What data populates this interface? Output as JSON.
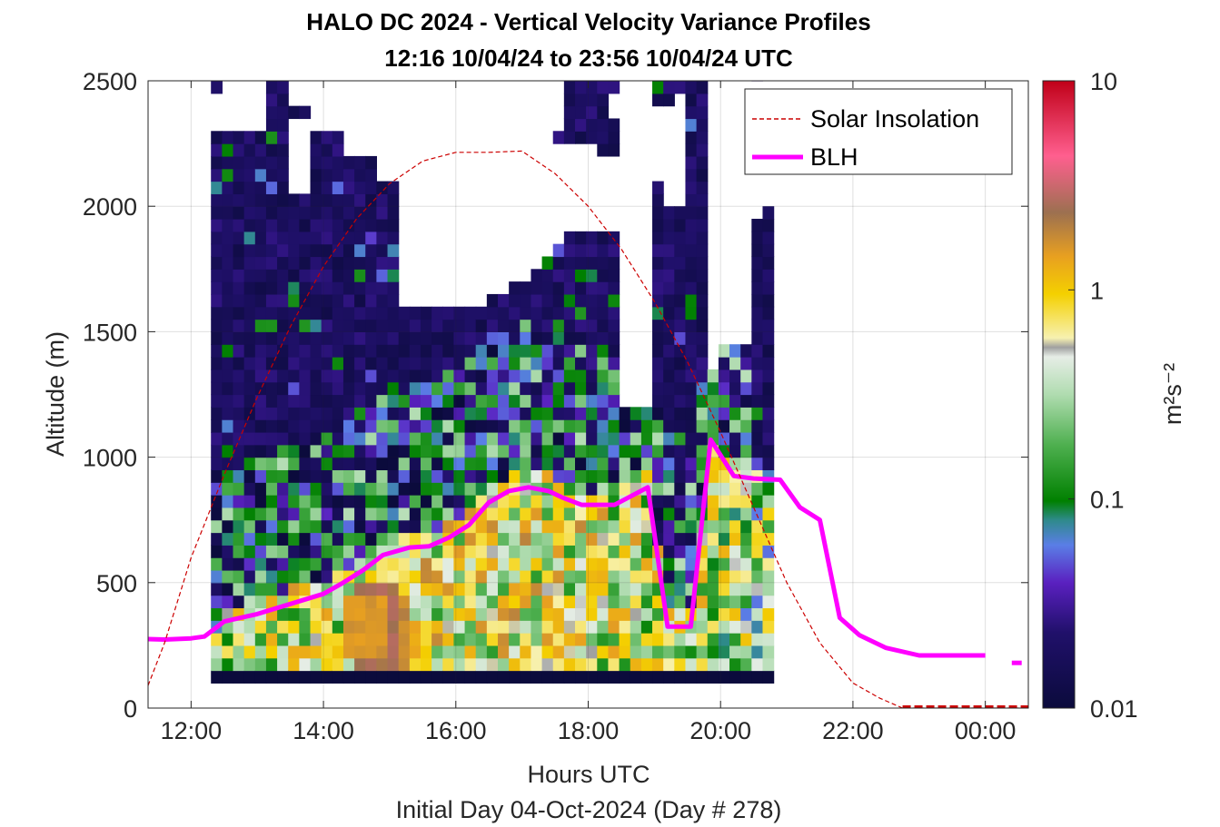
{
  "chart_data": {
    "type": "heatmap",
    "title": "HALO DC 2024 - Vertical Velocity Variance Profiles",
    "subtitle": "12:16 10/04/24 to 23:56 10/04/24  UTC",
    "xlabel": "Hours UTC",
    "xlabel2": "Initial Day 04-Oct-2024 (Day # 278)",
    "ylabel": "Altitude (m)",
    "xlim": [
      11.35,
      24.65
    ],
    "ylim": [
      0,
      2500
    ],
    "x_ticks": [
      12,
      14,
      16,
      18,
      20,
      22,
      24
    ],
    "x_tick_labels": [
      "12:00",
      "14:00",
      "16:00",
      "18:00",
      "20:00",
      "22:00",
      "00:00"
    ],
    "y_ticks": [
      0,
      500,
      1000,
      1500,
      2000,
      2500
    ],
    "y_tick_labels": [
      "0",
      "500",
      "1000",
      "1500",
      "2000",
      "2500"
    ],
    "grid": true,
    "colorbar": {
      "label": "m²s⁻²",
      "scale": "log",
      "range": [
        0.01,
        10
      ],
      "ticks": [
        "0.01",
        "0.1",
        "1",
        "10"
      ]
    },
    "legend": {
      "placement": "top-right",
      "entries": [
        "Solar Insolation",
        "BLH"
      ]
    },
    "series": [
      {
        "name": "BLH",
        "color": "#ff00ff",
        "x": [
          11.35,
          11.6,
          12.0,
          12.2,
          12.5,
          13.0,
          13.5,
          14.0,
          14.3,
          14.6,
          14.9,
          15.3,
          15.6,
          15.9,
          16.2,
          16.5,
          16.8,
          17.1,
          17.4,
          17.6,
          17.9,
          18.1,
          18.4,
          18.9,
          19.2,
          19.55,
          19.85,
          20.2,
          20.5,
          20.9,
          21.2,
          21.5,
          21.8,
          22.1,
          22.5,
          23.0,
          23.5,
          24.0
        ],
        "y": [
          275,
          273,
          278,
          285,
          345,
          375,
          415,
          455,
          500,
          550,
          610,
          640,
          645,
          680,
          730,
          820,
          865,
          880,
          865,
          840,
          810,
          810,
          810,
          880,
          325,
          325,
          1070,
          925,
          915,
          910,
          800,
          750,
          360,
          290,
          240,
          210,
          210,
          210
        ]
      },
      {
        "name": "BLH",
        "color": "#ff00ff",
        "x": [
          24.4,
          24.55
        ],
        "y": [
          180,
          180
        ]
      },
      {
        "name": "Solar Insolation",
        "color": "#cc0000",
        "x": [
          11.35,
          11.6,
          12.0,
          12.5,
          13.0,
          13.5,
          14.0,
          14.5,
          15.0,
          15.5,
          16.0,
          16.5,
          17.0,
          17.5,
          18.0,
          18.5,
          19.0,
          19.5,
          20.0,
          20.5,
          21.0,
          21.5,
          22.0,
          22.4,
          22.75,
          23.0,
          24.0,
          24.65
        ],
        "y": [
          90,
          260,
          600,
          930,
          1240,
          1520,
          1760,
          1950,
          2090,
          2180,
          2215,
          2215,
          2220,
          2130,
          2000,
          1830,
          1620,
          1380,
          1100,
          800,
          500,
          260,
          100,
          40,
          0,
          0,
          0,
          0
        ]
      }
    ],
    "heatmap": {
      "x_start": 12.3,
      "x_step": 0.1667,
      "y_start": 100,
      "y_step": 50,
      "nx": 51,
      "ny": 49,
      "missing": [
        [
          0,
          44,
          46
        ],
        [
          0,
          48,
          48
        ],
        [
          1,
          44,
          48
        ],
        [
          2,
          44,
          48
        ],
        [
          3,
          44,
          48
        ],
        [
          4,
          44,
          48
        ],
        [
          7,
          39,
          44
        ],
        [
          7,
          46,
          48
        ],
        [
          8,
          39,
          44
        ],
        [
          8,
          46,
          48
        ],
        [
          9,
          44,
          48
        ],
        [
          10,
          44,
          48
        ],
        [
          11,
          44,
          48
        ],
        [
          12,
          42,
          48
        ],
        [
          13,
          42,
          48
        ],
        [
          14,
          42,
          48
        ],
        [
          15,
          40,
          48
        ],
        [
          16,
          40,
          48
        ],
        [
          17,
          30,
          48
        ],
        [
          18,
          30,
          48
        ],
        [
          19,
          30,
          48
        ],
        [
          20,
          30,
          48
        ],
        [
          21,
          30,
          48
        ],
        [
          22,
          30,
          48
        ],
        [
          23,
          30,
          48
        ],
        [
          24,
          30,
          48
        ],
        [
          25,
          31,
          48
        ],
        [
          26,
          31,
          48
        ],
        [
          27,
          32,
          48
        ],
        [
          28,
          32,
          48
        ],
        [
          29,
          33,
          48
        ],
        [
          30,
          34,
          48
        ],
        [
          31,
          35,
          42
        ],
        [
          31,
          44,
          48
        ],
        [
          32,
          36,
          42
        ],
        [
          33,
          36,
          42
        ],
        [
          34,
          36,
          42
        ],
        [
          35,
          36,
          41
        ],
        [
          36,
          36,
          41
        ],
        [
          36,
          45,
          46
        ],
        [
          37,
          22,
          48
        ],
        [
          38,
          22,
          48
        ],
        [
          39,
          22,
          48
        ],
        [
          40,
          40,
          45
        ],
        [
          41,
          38,
          45
        ],
        [
          42,
          38,
          46
        ],
        [
          45,
          25,
          48
        ],
        [
          46,
          27,
          48
        ],
        [
          47,
          27,
          48
        ],
        [
          48,
          27,
          48
        ],
        [
          49,
          37,
          41
        ],
        [
          49,
          43,
          47
        ],
        [
          50,
          38,
          48
        ]
      ],
      "hot_patches": [
        [
          12,
          15,
          2,
          6,
          0.9
        ],
        [
          13,
          16,
          1,
          7,
          1.6
        ],
        [
          14,
          17,
          1,
          6,
          1.1
        ],
        [
          15,
          18,
          2,
          4,
          0.7
        ],
        [
          10,
          11,
          1,
          3,
          0.5
        ],
        [
          18,
          19,
          1,
          4,
          0.45
        ],
        [
          16,
          17,
          8,
          9,
          0.35
        ],
        [
          34,
          35,
          7,
          9,
          0.6
        ],
        [
          24,
          25,
          38,
          38,
          2.8
        ],
        [
          31,
          32,
          40,
          40,
          0.55
        ]
      ]
    }
  }
}
